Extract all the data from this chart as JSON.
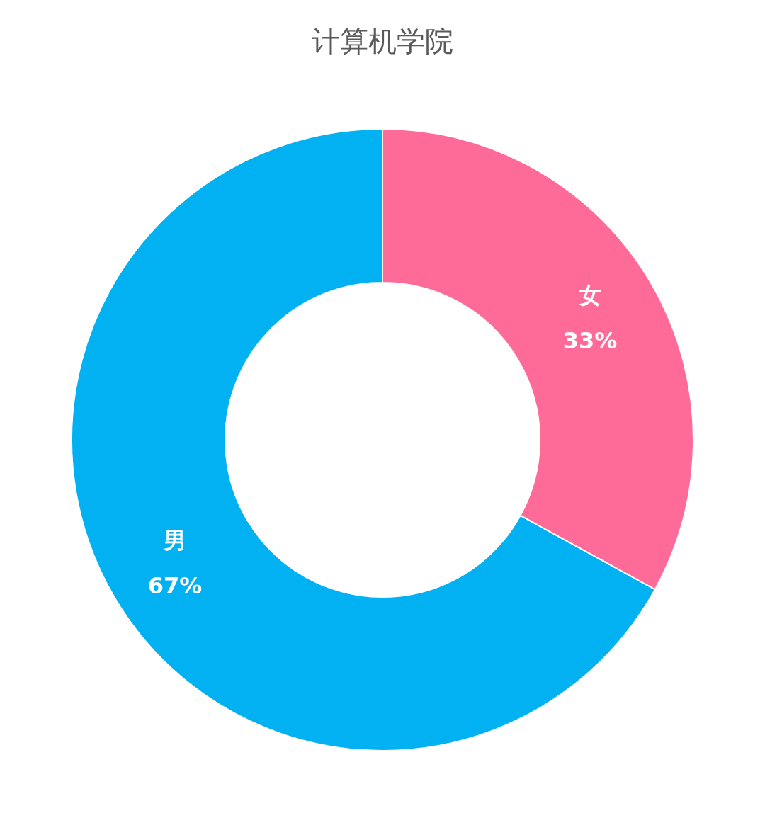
{
  "chart_data": {
    "type": "donut",
    "title": "计算机学院",
    "categories": [
      "女",
      "男"
    ],
    "values": [
      33,
      67
    ],
    "colors": [
      "#ff6b99",
      "#02b1f1"
    ],
    "value_labels": [
      "33%",
      "67%"
    ],
    "legend": false
  }
}
